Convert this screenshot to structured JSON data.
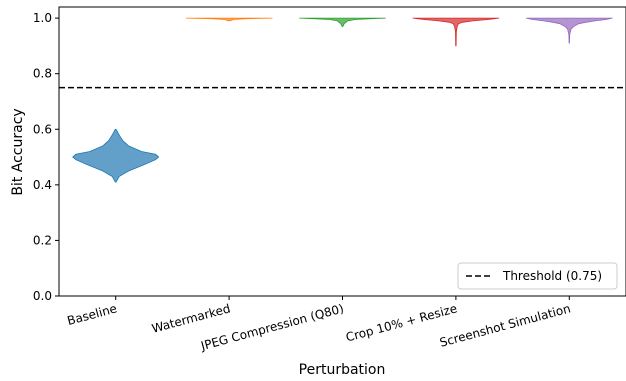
{
  "chart_data": {
    "type": "violin",
    "xlabel": "Perturbation",
    "ylabel": "Bit Accuracy",
    "ylim": [
      0.0,
      1.04
    ],
    "yticks": [
      "0.0",
      "0.2",
      "0.4",
      "0.6",
      "0.8",
      "1.0"
    ],
    "grid": false,
    "legend_position": "bottom-right",
    "threshold": {
      "label": "Threshold (0.75)",
      "value": 0.75,
      "style": "dashed",
      "color": "#000000"
    },
    "categories": [
      "Baseline",
      "Watermarked",
      "JPEG Compression (Q80)",
      "Crop 10% + Resize",
      "Screenshot Simulation"
    ],
    "series": [
      {
        "category": "Baseline",
        "color": "#1f77b4",
        "min": 0.41,
        "max": 0.6,
        "median": 0.5,
        "density": [
          [
            0.41,
            0.01
          ],
          [
            0.43,
            0.08
          ],
          [
            0.45,
            0.3
          ],
          [
            0.47,
            0.62
          ],
          [
            0.49,
            0.92
          ],
          [
            0.5,
            1.0
          ],
          [
            0.51,
            0.93
          ],
          [
            0.52,
            0.6
          ],
          [
            0.54,
            0.3
          ],
          [
            0.56,
            0.16
          ],
          [
            0.58,
            0.08
          ],
          [
            0.6,
            0.01
          ]
        ]
      },
      {
        "category": "Watermarked",
        "color": "#ff7f0e",
        "min": 0.99,
        "max": 1.0,
        "median": 1.0,
        "density": [
          [
            0.99,
            0.02
          ],
          [
            0.995,
            0.1
          ],
          [
            0.998,
            0.4
          ],
          [
            1.0,
            1.0
          ]
        ]
      },
      {
        "category": "JPEG Compression (Q80)",
        "color": "#2ca02c",
        "min": 0.97,
        "max": 1.0,
        "median": 1.0,
        "density": [
          [
            0.97,
            0.01
          ],
          [
            0.98,
            0.04
          ],
          [
            0.99,
            0.12
          ],
          [
            0.995,
            0.3
          ],
          [
            1.0,
            1.0
          ]
        ]
      },
      {
        "category": "Crop 10% + Resize",
        "color": "#d62728",
        "min": 0.9,
        "max": 1.0,
        "median": 0.99,
        "density": [
          [
            0.9,
            0.005
          ],
          [
            0.95,
            0.01
          ],
          [
            0.97,
            0.03
          ],
          [
            0.98,
            0.06
          ],
          [
            0.985,
            0.15
          ],
          [
            0.99,
            0.4
          ],
          [
            0.995,
            0.75
          ],
          [
            1.0,
            1.0
          ]
        ]
      },
      {
        "category": "Screenshot Simulation",
        "color": "#9467bd",
        "min": 0.91,
        "max": 1.0,
        "median": 0.99,
        "density": [
          [
            0.91,
            0.005
          ],
          [
            0.94,
            0.01
          ],
          [
            0.96,
            0.04
          ],
          [
            0.97,
            0.1
          ],
          [
            0.98,
            0.22
          ],
          [
            0.985,
            0.38
          ],
          [
            0.99,
            0.6
          ],
          [
            0.995,
            0.85
          ],
          [
            1.0,
            1.0
          ]
        ]
      }
    ]
  }
}
